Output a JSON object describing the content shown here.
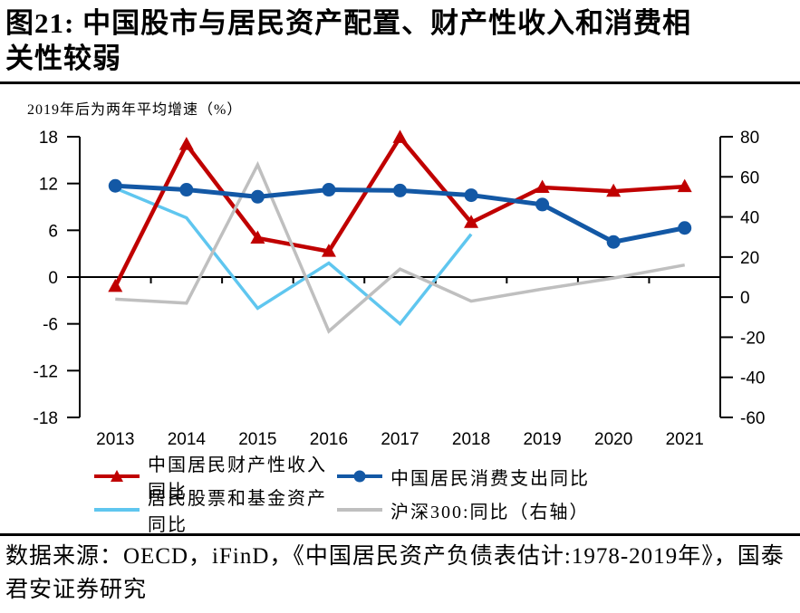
{
  "figure": {
    "title_lines": [
      "图21:  中国股市与居民资产配置、财产性收入和消费相",
      "关性较弱"
    ],
    "note": "2019年后为两年平均增速（%）",
    "source_lines": [
      "数据来源：OECD，iFinD，《中国居民资产负债表估计:1978-2019",
      "年》，国泰君安证券研究"
    ]
  },
  "colors": {
    "property_income_red": "#C00000",
    "consumption_blue": "#1358A5",
    "stock_fund_lightblue": "#5FC6EF",
    "csi300_gray": "#BFBFBF",
    "axis_black": "#000000"
  },
  "chart_data": {
    "type": "line",
    "categories": [
      "2013",
      "2014",
      "2015",
      "2016",
      "2017",
      "2018",
      "2019",
      "2020",
      "2021"
    ],
    "left_axis": {
      "min": -18,
      "max": 18,
      "ticks": [
        18,
        12,
        6,
        0,
        -6,
        -12,
        -18
      ]
    },
    "right_axis": {
      "min": -60,
      "max": 80,
      "ticks": [
        80,
        60,
        40,
        20,
        0,
        -20,
        -40,
        -60
      ]
    },
    "grid": false,
    "legend_position": "bottom",
    "draw_order": [
      2,
      0,
      3,
      1
    ],
    "series": [
      {
        "name": "中国居民财产性收入同比",
        "axis": "left",
        "color": "#C00000",
        "marker": "triangle",
        "stroke_width": 4.5,
        "values": [
          -1.2,
          17,
          5,
          3.3,
          17.9,
          7,
          11.5,
          11,
          11.6
        ]
      },
      {
        "name": "中国居民消费支出同比",
        "axis": "left",
        "color": "#1358A5",
        "marker": "circle",
        "stroke_width": 5,
        "values": [
          11.7,
          11.2,
          10.3,
          11.2,
          11.1,
          10.5,
          9.3,
          4.5,
          6.3
        ]
      },
      {
        "name": "居民股票和基金资产同比",
        "axis": "left",
        "color": "#5FC6EF",
        "marker": "none",
        "stroke_width": 3.5,
        "values": [
          11.4,
          7.6,
          -4,
          1.8,
          -6,
          5.5,
          null,
          null,
          null
        ]
      },
      {
        "name": "沪深300:同比（右轴）",
        "axis": "right",
        "color": "#BFBFBF",
        "marker": "none",
        "stroke_width": 3.5,
        "values": [
          -1,
          -3,
          66,
          -17,
          14,
          -2,
          4,
          9.5,
          16
        ]
      }
    ]
  },
  "legend": [
    {
      "label": "中国居民财产性收入同比",
      "icon": "red-triangle-line-swatch",
      "color": "#C00000",
      "marker": "triangle"
    },
    {
      "label": "中国居民消费支出同比",
      "icon": "blue-circle-line-swatch",
      "color": "#1358A5",
      "marker": "circle"
    },
    {
      "label": "居民股票和基金资产同比",
      "icon": "lightblue-line-swatch",
      "color": "#5FC6EF",
      "marker": "none"
    },
    {
      "label": "沪深300:同比（右轴）",
      "icon": "gray-line-swatch",
      "color": "#BFBFBF",
      "marker": "none"
    }
  ]
}
